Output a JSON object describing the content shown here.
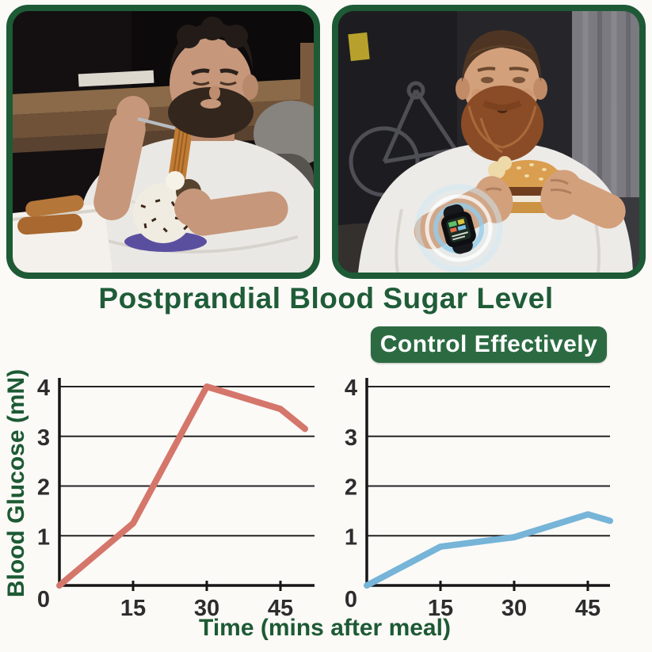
{
  "header": {
    "title": "Postprandial Blood Sugar Level",
    "title_color": "#1f5c38"
  },
  "badge": {
    "label": "Control Effectively",
    "bg_color": "#2c6b42",
    "text_color": "#ffffff"
  },
  "photos": [
    {
      "name": "overeating-desserts-photo",
      "description": "Overweight man with dark curly hair, eyes closed, eating a churro and a chocolate-sprinkle cream cake from a white takeout box on a couch"
    },
    {
      "name": "controlled-eating-photo",
      "description": "Bearded man in a white t-shirt eating a sesame-bun burger while wearing a glucose-monitoring smartwatch highlighted by a glowing ring"
    }
  ],
  "chart_data": {
    "type": "line",
    "ylabel": "Blood Glucose (mN)",
    "xlabel": "Time (mins after meal)",
    "y_ticks": [
      0,
      1,
      2,
      3,
      4
    ],
    "x_ticks": [
      15,
      30,
      45
    ],
    "ylim": [
      0,
      4.3
    ],
    "xlim": [
      0,
      52
    ],
    "grid": true,
    "legend": "none",
    "charts": [
      {
        "name": "uncontrolled-blood-sugar",
        "color": "#d5766b",
        "x": [
          0,
          15,
          30,
          45,
          50
        ],
        "y": [
          0,
          1.25,
          4.0,
          3.55,
          3.15
        ]
      },
      {
        "name": "controlled-blood-sugar",
        "color": "#76b4d8",
        "x": [
          0,
          15,
          22,
          30,
          45,
          50
        ],
        "y": [
          0,
          0.78,
          0.87,
          0.97,
          1.43,
          1.3
        ]
      }
    ]
  }
}
